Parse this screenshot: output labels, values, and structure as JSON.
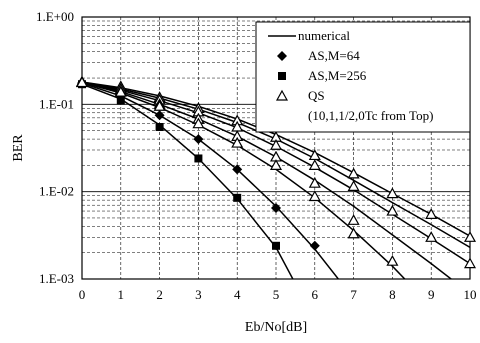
{
  "chart_data": {
    "type": "line",
    "xlabel": "Eb/No[dB]",
    "ylabel": "BER",
    "xlim": [
      0,
      10
    ],
    "ylim": [
      0.001,
      1
    ],
    "yscale": "log",
    "x_ticks": [
      "0",
      "1",
      "2",
      "3",
      "4",
      "5",
      "6",
      "7",
      "8",
      "9",
      "10"
    ],
    "y_ticks": [
      "1.E+00",
      "1.E-01",
      "1.E-02",
      "1.E-03"
    ],
    "grid": true,
    "legend": {
      "position": "top-right",
      "entries": [
        "numerical",
        "AS,M=64",
        "AS,M=256",
        "QS",
        "(10,1,1/2,0Tc from Top)"
      ]
    },
    "numerical_curves": [
      {
        "x": [
          0,
          1,
          2,
          3,
          4,
          5,
          6,
          7,
          8,
          9,
          10
        ],
        "y": [
          0.18,
          0.155,
          0.125,
          0.095,
          0.068,
          0.045,
          0.028,
          0.0165,
          0.0095,
          0.0055,
          0.0031
        ]
      },
      {
        "x": [
          0,
          1,
          2,
          3,
          4,
          5,
          6,
          7,
          8,
          9,
          10
        ],
        "y": [
          0.18,
          0.145,
          0.11,
          0.08,
          0.054,
          0.033,
          0.019,
          0.0105,
          0.0055,
          0.0029,
          0.0015
        ]
      },
      {
        "x": [
          0,
          1,
          2,
          3,
          4,
          5,
          6,
          7,
          8,
          9,
          10
        ],
        "y": [
          0.18,
          0.14,
          0.1,
          0.068,
          0.043,
          0.025,
          0.0135,
          0.0068,
          0.0032,
          0.0015,
          0.00068
        ]
      },
      {
        "x": [
          0,
          1,
          2,
          3,
          4,
          5,
          6,
          7,
          8,
          8.8
        ],
        "y": [
          0.178,
          0.135,
          0.092,
          0.058,
          0.034,
          0.018,
          0.0085,
          0.0036,
          0.0014,
          0.0006
        ]
      },
      {
        "x": [
          0,
          1,
          2,
          3,
          4,
          5,
          6,
          7,
          7.3
        ],
        "y": [
          0.175,
          0.125,
          0.075,
          0.04,
          0.018,
          0.0068,
          0.0022,
          0.0006,
          0.0004
        ]
      },
      {
        "x": [
          0,
          1,
          2,
          3,
          4,
          5,
          5.7
        ],
        "y": [
          0.17,
          0.115,
          0.058,
          0.024,
          0.0083,
          0.0023,
          0.0006
        ]
      },
      {
        "x": [
          0,
          1,
          2,
          3,
          4,
          5,
          6,
          7,
          8,
          9,
          10
        ],
        "y": [
          0.18,
          0.15,
          0.118,
          0.088,
          0.062,
          0.04,
          0.024,
          0.0135,
          0.0075,
          0.0042,
          0.0023
        ]
      }
    ],
    "series": [
      {
        "name": "AS,M=64",
        "marker": "diamond",
        "x": [
          0,
          1,
          2,
          3,
          4,
          5,
          6
        ],
        "y": [
          0.175,
          0.125,
          0.075,
          0.04,
          0.018,
          0.0065,
          0.0024
        ]
      },
      {
        "name": "AS,M=256",
        "marker": "square",
        "x": [
          0,
          1,
          2,
          3,
          4,
          5
        ],
        "y": [
          0.17,
          0.11,
          0.055,
          0.024,
          0.0085,
          0.0024
        ]
      },
      {
        "name": "QS",
        "marker": "triangle",
        "x": [
          0,
          1,
          2,
          3,
          4,
          5,
          6,
          7,
          8,
          9,
          10,
          0,
          1,
          2,
          3,
          4,
          5,
          6,
          7,
          8,
          9,
          10,
          0,
          1,
          2,
          3,
          4,
          5,
          6,
          7,
          8,
          0,
          1,
          2,
          3,
          4,
          5,
          6,
          7,
          8
        ],
        "y": [
          0.18,
          0.16,
          0.12,
          0.09,
          0.065,
          0.042,
          0.026,
          0.016,
          0.0095,
          0.0055,
          0.003,
          0.18,
          0.15,
          0.112,
          0.082,
          0.055,
          0.034,
          0.02,
          0.0115,
          0.006,
          0.003,
          0.0015,
          0.18,
          0.14,
          0.1,
          0.068,
          0.043,
          0.025,
          0.0125,
          0.0047,
          0.0016,
          0.178,
          0.138,
          0.095,
          0.06,
          0.036,
          0.02,
          0.0088,
          0.0033,
          0.0009
        ]
      }
    ]
  }
}
